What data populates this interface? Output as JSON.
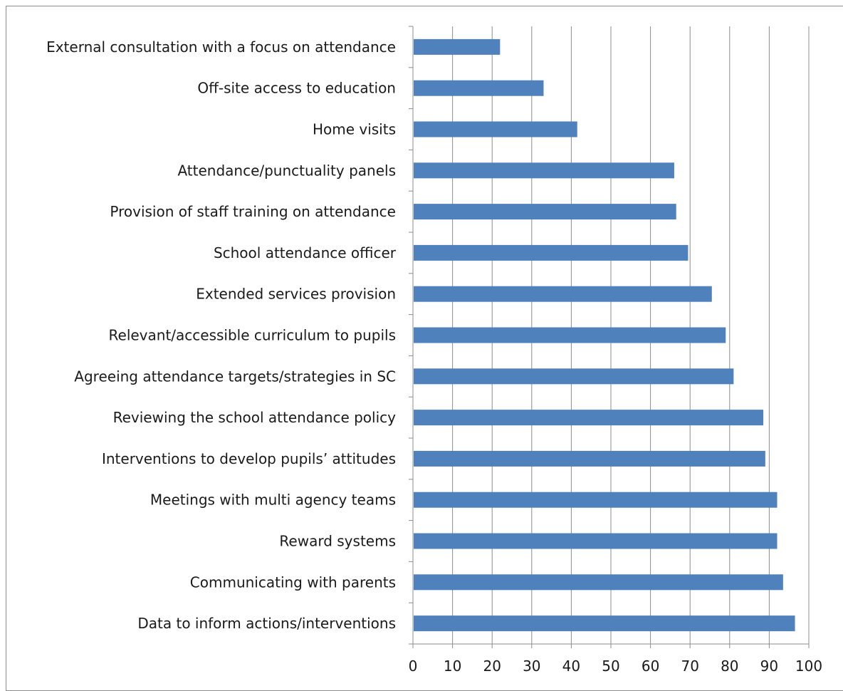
{
  "chart_data": {
    "type": "bar",
    "orientation": "horizontal",
    "title": "",
    "xlabel": "",
    "ylabel": "",
    "xlim": [
      0,
      100
    ],
    "x_ticks": [
      0,
      10,
      20,
      30,
      40,
      50,
      60,
      70,
      80,
      90,
      100
    ],
    "grid": true,
    "legend": "none",
    "bar_color": "#4f81bd",
    "categories": [
      "External consultation with a focus on attendance",
      "Off-site access to education",
      "Home visits",
      "Attendance/punctuality panels",
      "Provision of staff training on attendance",
      "School attendance officer",
      "Extended services provision",
      "Relevant/accessible curriculum to pupils",
      "Agreeing attendance targets/strategies in SC",
      "Reviewing the school attendance policy",
      "Interventions to develop pupils’ attitudes",
      "Meetings with multi agency teams",
      "Reward systems",
      "Communicating with parents",
      "Data to inform actions/interventions"
    ],
    "values": [
      22,
      33,
      41.5,
      66,
      66.5,
      69.5,
      75.5,
      79,
      81,
      88.5,
      89,
      92,
      92,
      93.5,
      96.5
    ]
  }
}
